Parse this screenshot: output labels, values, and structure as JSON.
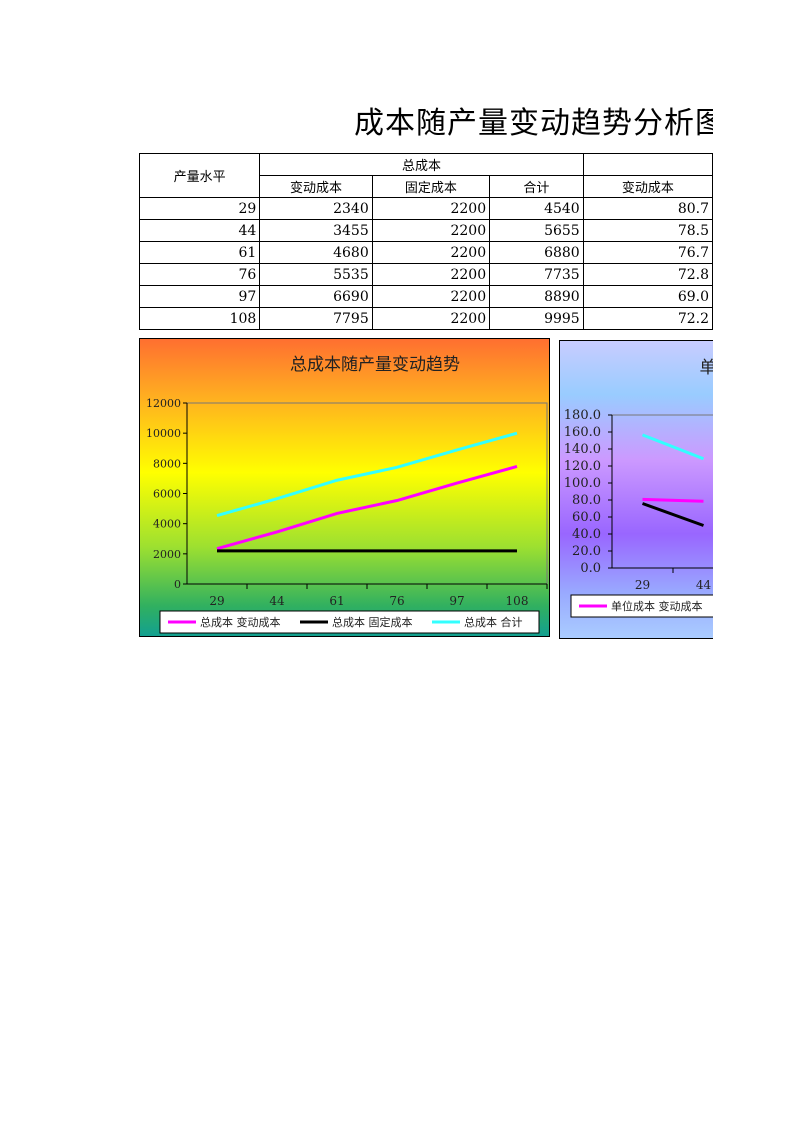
{
  "title": "成本随产量变动趋势分析图",
  "table": {
    "col_output": "产量水平",
    "group_total": "总成本",
    "sub_headers": [
      "变动成本",
      "固定成本",
      "合计",
      "变动成本"
    ],
    "rows": [
      [
        "29",
        "2340",
        "2200",
        "4540",
        "80.7"
      ],
      [
        "44",
        "3455",
        "2200",
        "5655",
        "78.5"
      ],
      [
        "61",
        "4680",
        "2200",
        "6880",
        "76.7"
      ],
      [
        "76",
        "5535",
        "2200",
        "7735",
        "72.8"
      ],
      [
        "97",
        "6690",
        "2200",
        "8890",
        "69.0"
      ],
      [
        "108",
        "7795",
        "2200",
        "9995",
        "72.2"
      ]
    ]
  },
  "chart_data": [
    {
      "type": "line",
      "title": "总成本随产量变动趋势",
      "categories": [
        "29",
        "44",
        "61",
        "76",
        "97",
        "108"
      ],
      "ylim": [
        0,
        12000
      ],
      "yticks": [
        "0",
        "2000",
        "4000",
        "6000",
        "8000",
        "10000",
        "12000"
      ],
      "legend": "bottom",
      "series": [
        {
          "name": "总成本 变动成本",
          "color": "#ff00ff",
          "values": [
            2340,
            3455,
            4680,
            5535,
            6690,
            7795
          ]
        },
        {
          "name": "总成本 固定成本",
          "color": "#000000",
          "values": [
            2200,
            2200,
            2200,
            2200,
            2200,
            2200
          ]
        },
        {
          "name": "总成本 合计",
          "color": "#33ffff",
          "values": [
            4540,
            5655,
            6880,
            7735,
            8890,
            9995
          ]
        }
      ]
    },
    {
      "type": "line",
      "title": "单",
      "categories": [
        "29",
        "44"
      ],
      "ylim": [
        0,
        180
      ],
      "yticks": [
        "0.0",
        "20.0",
        "40.0",
        "60.0",
        "80.0",
        "100.0",
        "120.0",
        "140.0",
        "160.0",
        "180.0"
      ],
      "legend": "bottom",
      "series": [
        {
          "name": "单位成本 变动成本",
          "color": "#ff00ff",
          "values": [
            80.7,
            78.5
          ]
        },
        {
          "color": "#000000",
          "values": [
            75.9,
            50.0
          ]
        },
        {
          "color": "#33ffff",
          "values": [
            156.6,
            128.5
          ]
        }
      ]
    }
  ]
}
